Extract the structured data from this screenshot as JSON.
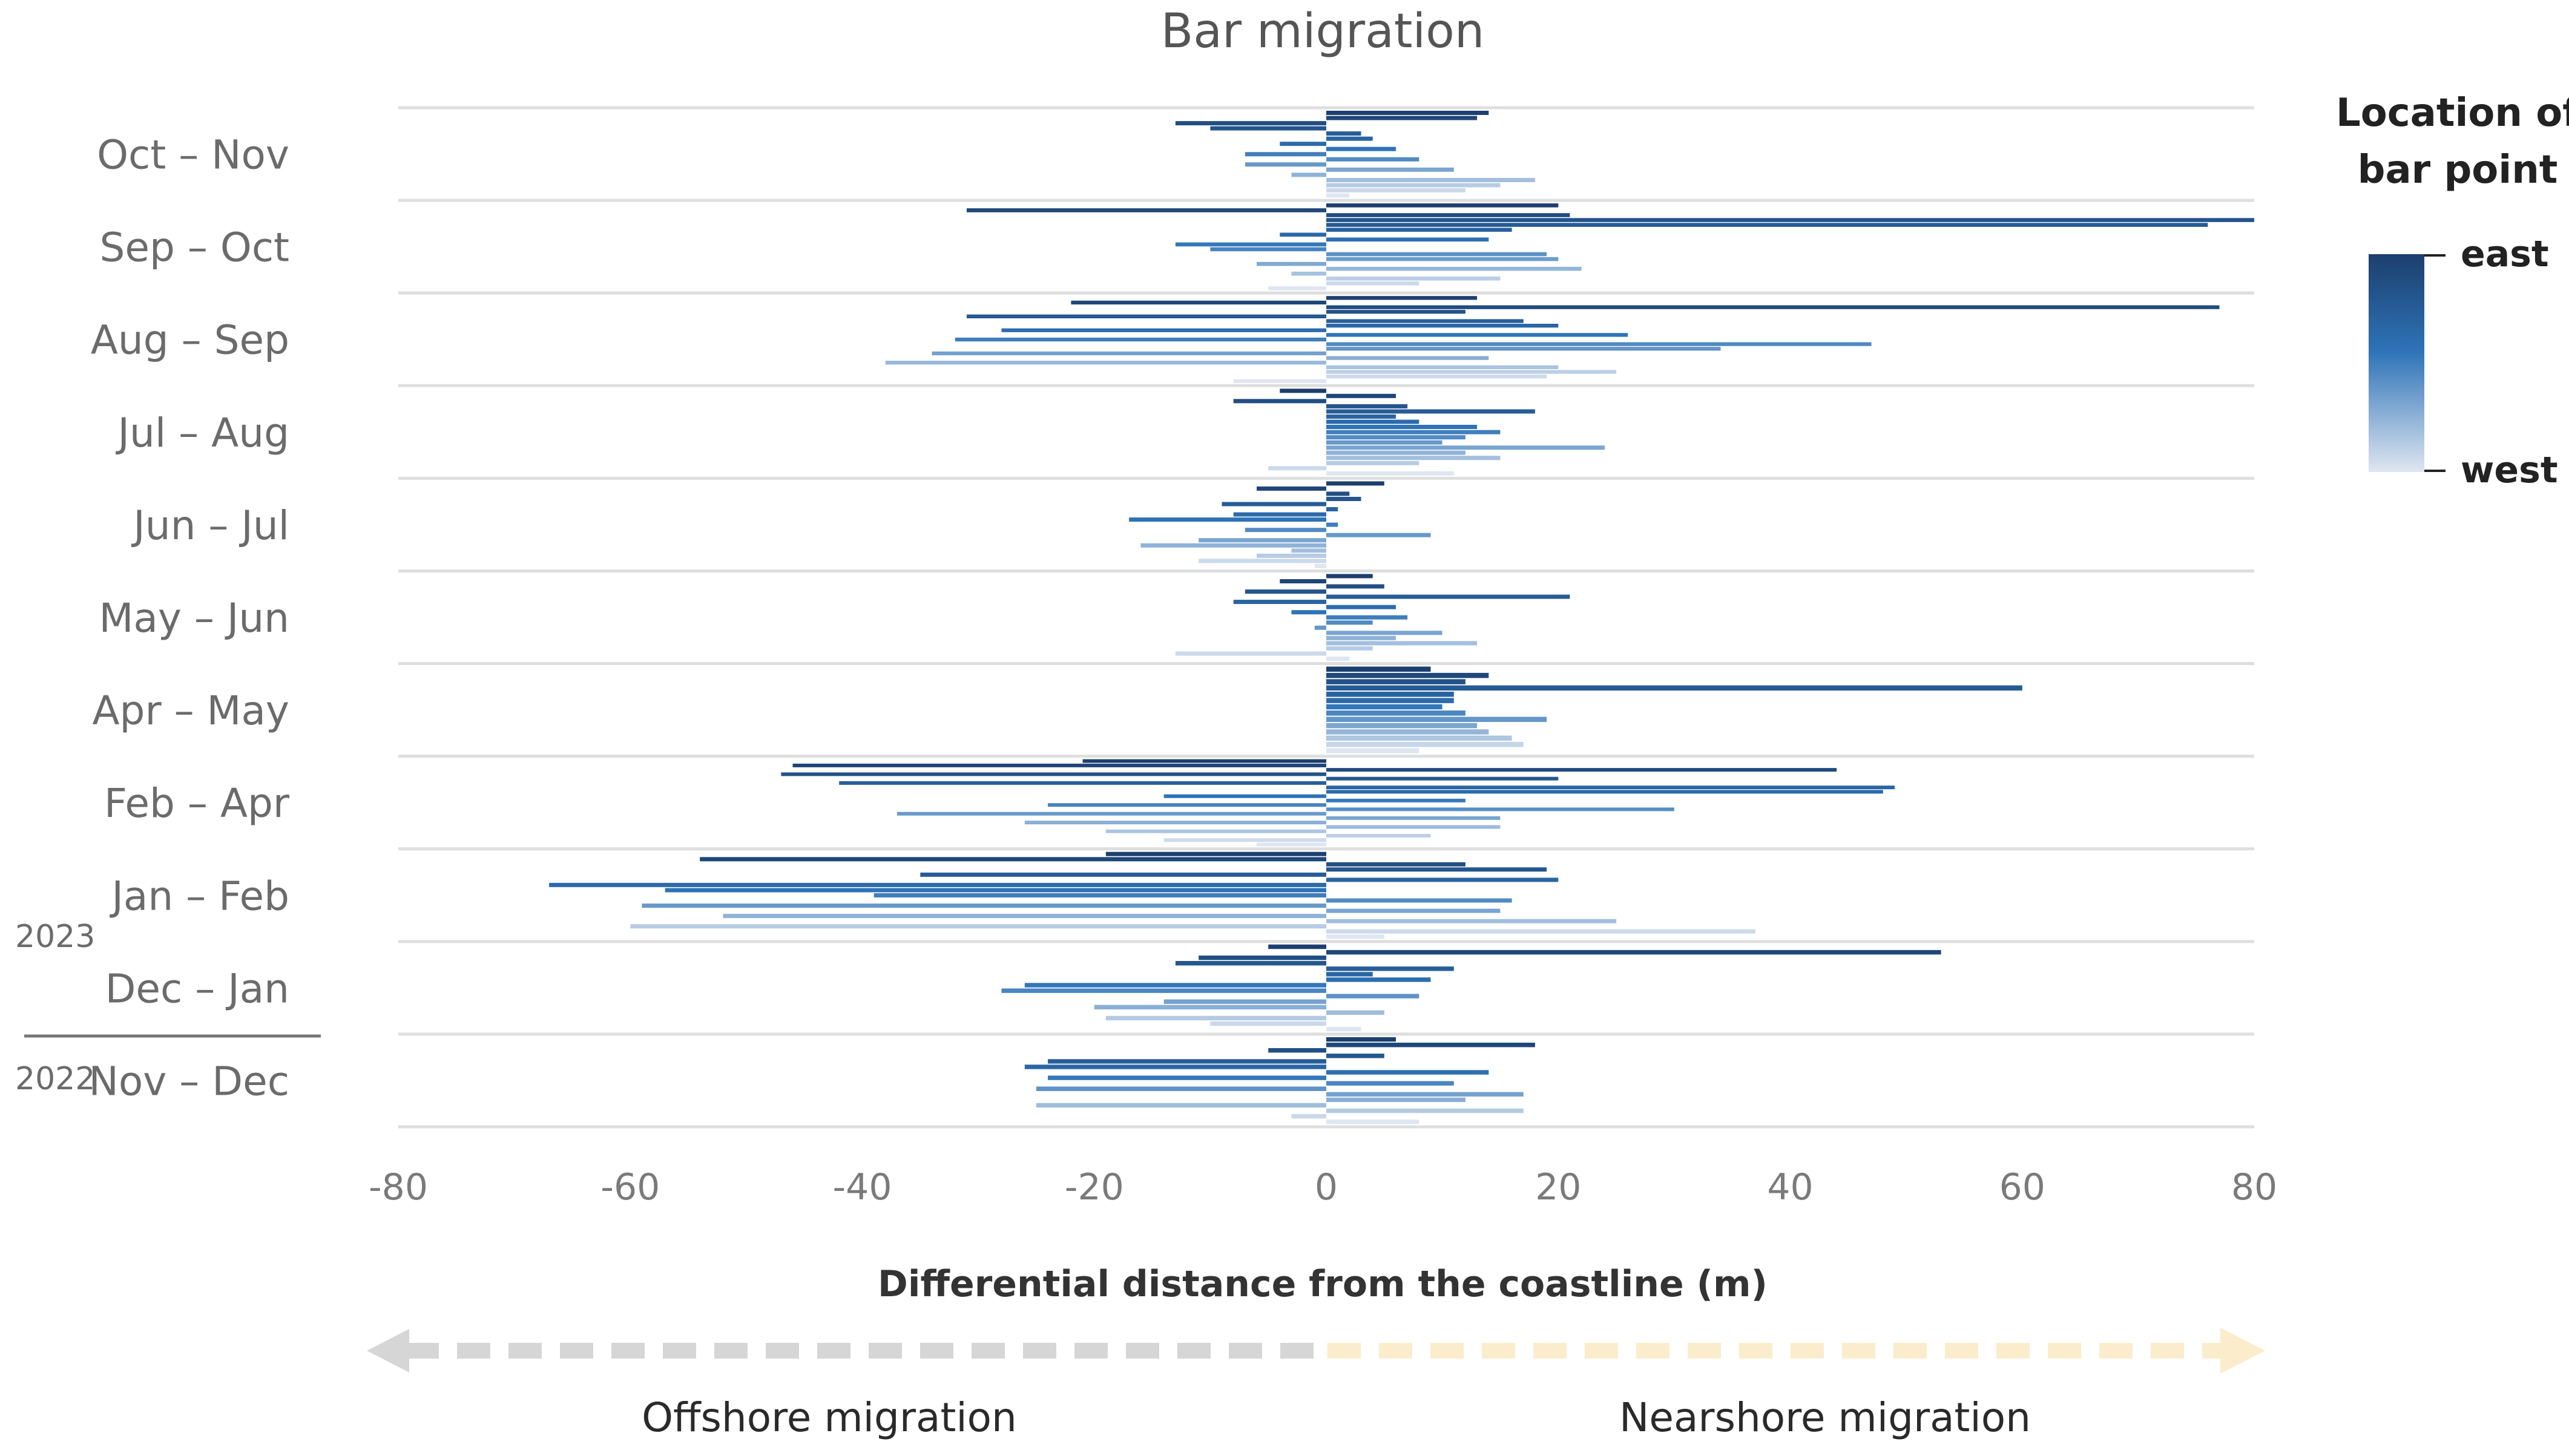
{
  "chart_data": {
    "type": "bar",
    "orientation": "horizontal",
    "title": "Bar migration",
    "xlabel": "Differential distance from the coastline (m)",
    "xlim": [
      -80,
      80
    ],
    "xticks": [
      -80,
      -60,
      -40,
      -20,
      0,
      20,
      40,
      60,
      80
    ],
    "xtick_labels": [
      "-80",
      "-60",
      "-40",
      "-20",
      "0",
      "20",
      "40",
      "60",
      "80"
    ],
    "grid": true,
    "direction_labels": {
      "negative": "Offshore migration",
      "positive": "Nearshore migration"
    },
    "arrow_colors": {
      "negative": "#d6d6d6",
      "positive": "#fbeccb"
    },
    "legend": {
      "title_line1": "Location of",
      "title_line2": "bar point",
      "top": "east",
      "bottom": "west",
      "color_east": "#1c3f6e",
      "color_mid": "#2e74b8",
      "color_west": "#dfe6f1"
    },
    "year_labels": {
      "upper": "2023",
      "lower": "2022"
    },
    "periods": [
      {
        "label": "Oct – Nov",
        "values": [
          14,
          13,
          -13,
          -10,
          3,
          4,
          -4,
          6,
          -7,
          8,
          -7,
          11,
          -3,
          18,
          15,
          12,
          2
        ]
      },
      {
        "label": "Sep – Oct",
        "values": [
          20,
          -31,
          21,
          80,
          76,
          16,
          -4,
          14,
          -13,
          -10,
          19,
          20,
          -6,
          22,
          -3,
          15,
          8,
          -5
        ]
      },
      {
        "label": "Aug – Sep",
        "values": [
          13,
          -22,
          77,
          12,
          -31,
          17,
          20,
          -28,
          26,
          -32,
          47,
          34,
          -34,
          14,
          -38,
          20,
          25,
          19,
          -8
        ]
      },
      {
        "label": "Jul – Aug",
        "values": [
          -4,
          6,
          -8,
          7,
          18,
          6,
          8,
          13,
          15,
          12,
          10,
          24,
          12,
          15,
          8,
          -5,
          11
        ]
      },
      {
        "label": "Jun – Jul",
        "values": [
          5,
          -6,
          2,
          3,
          -9,
          1,
          -8,
          -17,
          1,
          -7,
          9,
          -11,
          -16,
          -3,
          -6,
          -11,
          -1
        ]
      },
      {
        "label": "May – Jun",
        "values": [
          4,
          -4,
          5,
          -7,
          21,
          -8,
          6,
          -3,
          7,
          4,
          -1,
          10,
          6,
          13,
          4,
          -13,
          2
        ]
      },
      {
        "label": "Apr – May",
        "values": [
          9,
          14,
          12,
          60,
          11,
          11,
          10,
          12,
          19,
          13,
          14,
          16,
          17,
          8
        ]
      },
      {
        "label": "Feb – Apr",
        "values": [
          -21,
          -46,
          44,
          -47,
          20,
          -42,
          49,
          48,
          -14,
          12,
          -24,
          30,
          -37,
          15,
          -26,
          15,
          -19,
          9,
          -14,
          -6
        ]
      },
      {
        "label": "Jan – Feb",
        "values": [
          -19,
          -54,
          12,
          19,
          -35,
          20,
          -67,
          -57,
          -39,
          16,
          -59,
          15,
          -52,
          25,
          -60,
          37,
          5
        ]
      },
      {
        "label": "Dec – Jan",
        "values": [
          -5,
          53,
          -11,
          -13,
          11,
          4,
          9,
          -26,
          -28,
          8,
          -14,
          -20,
          5,
          -19,
          -10,
          3
        ]
      },
      {
        "label": "Nov – Dec",
        "values": [
          6,
          18,
          -5,
          5,
          -24,
          -26,
          14,
          -24,
          11,
          -25,
          17,
          12,
          -25,
          17,
          -3,
          8
        ]
      }
    ]
  }
}
